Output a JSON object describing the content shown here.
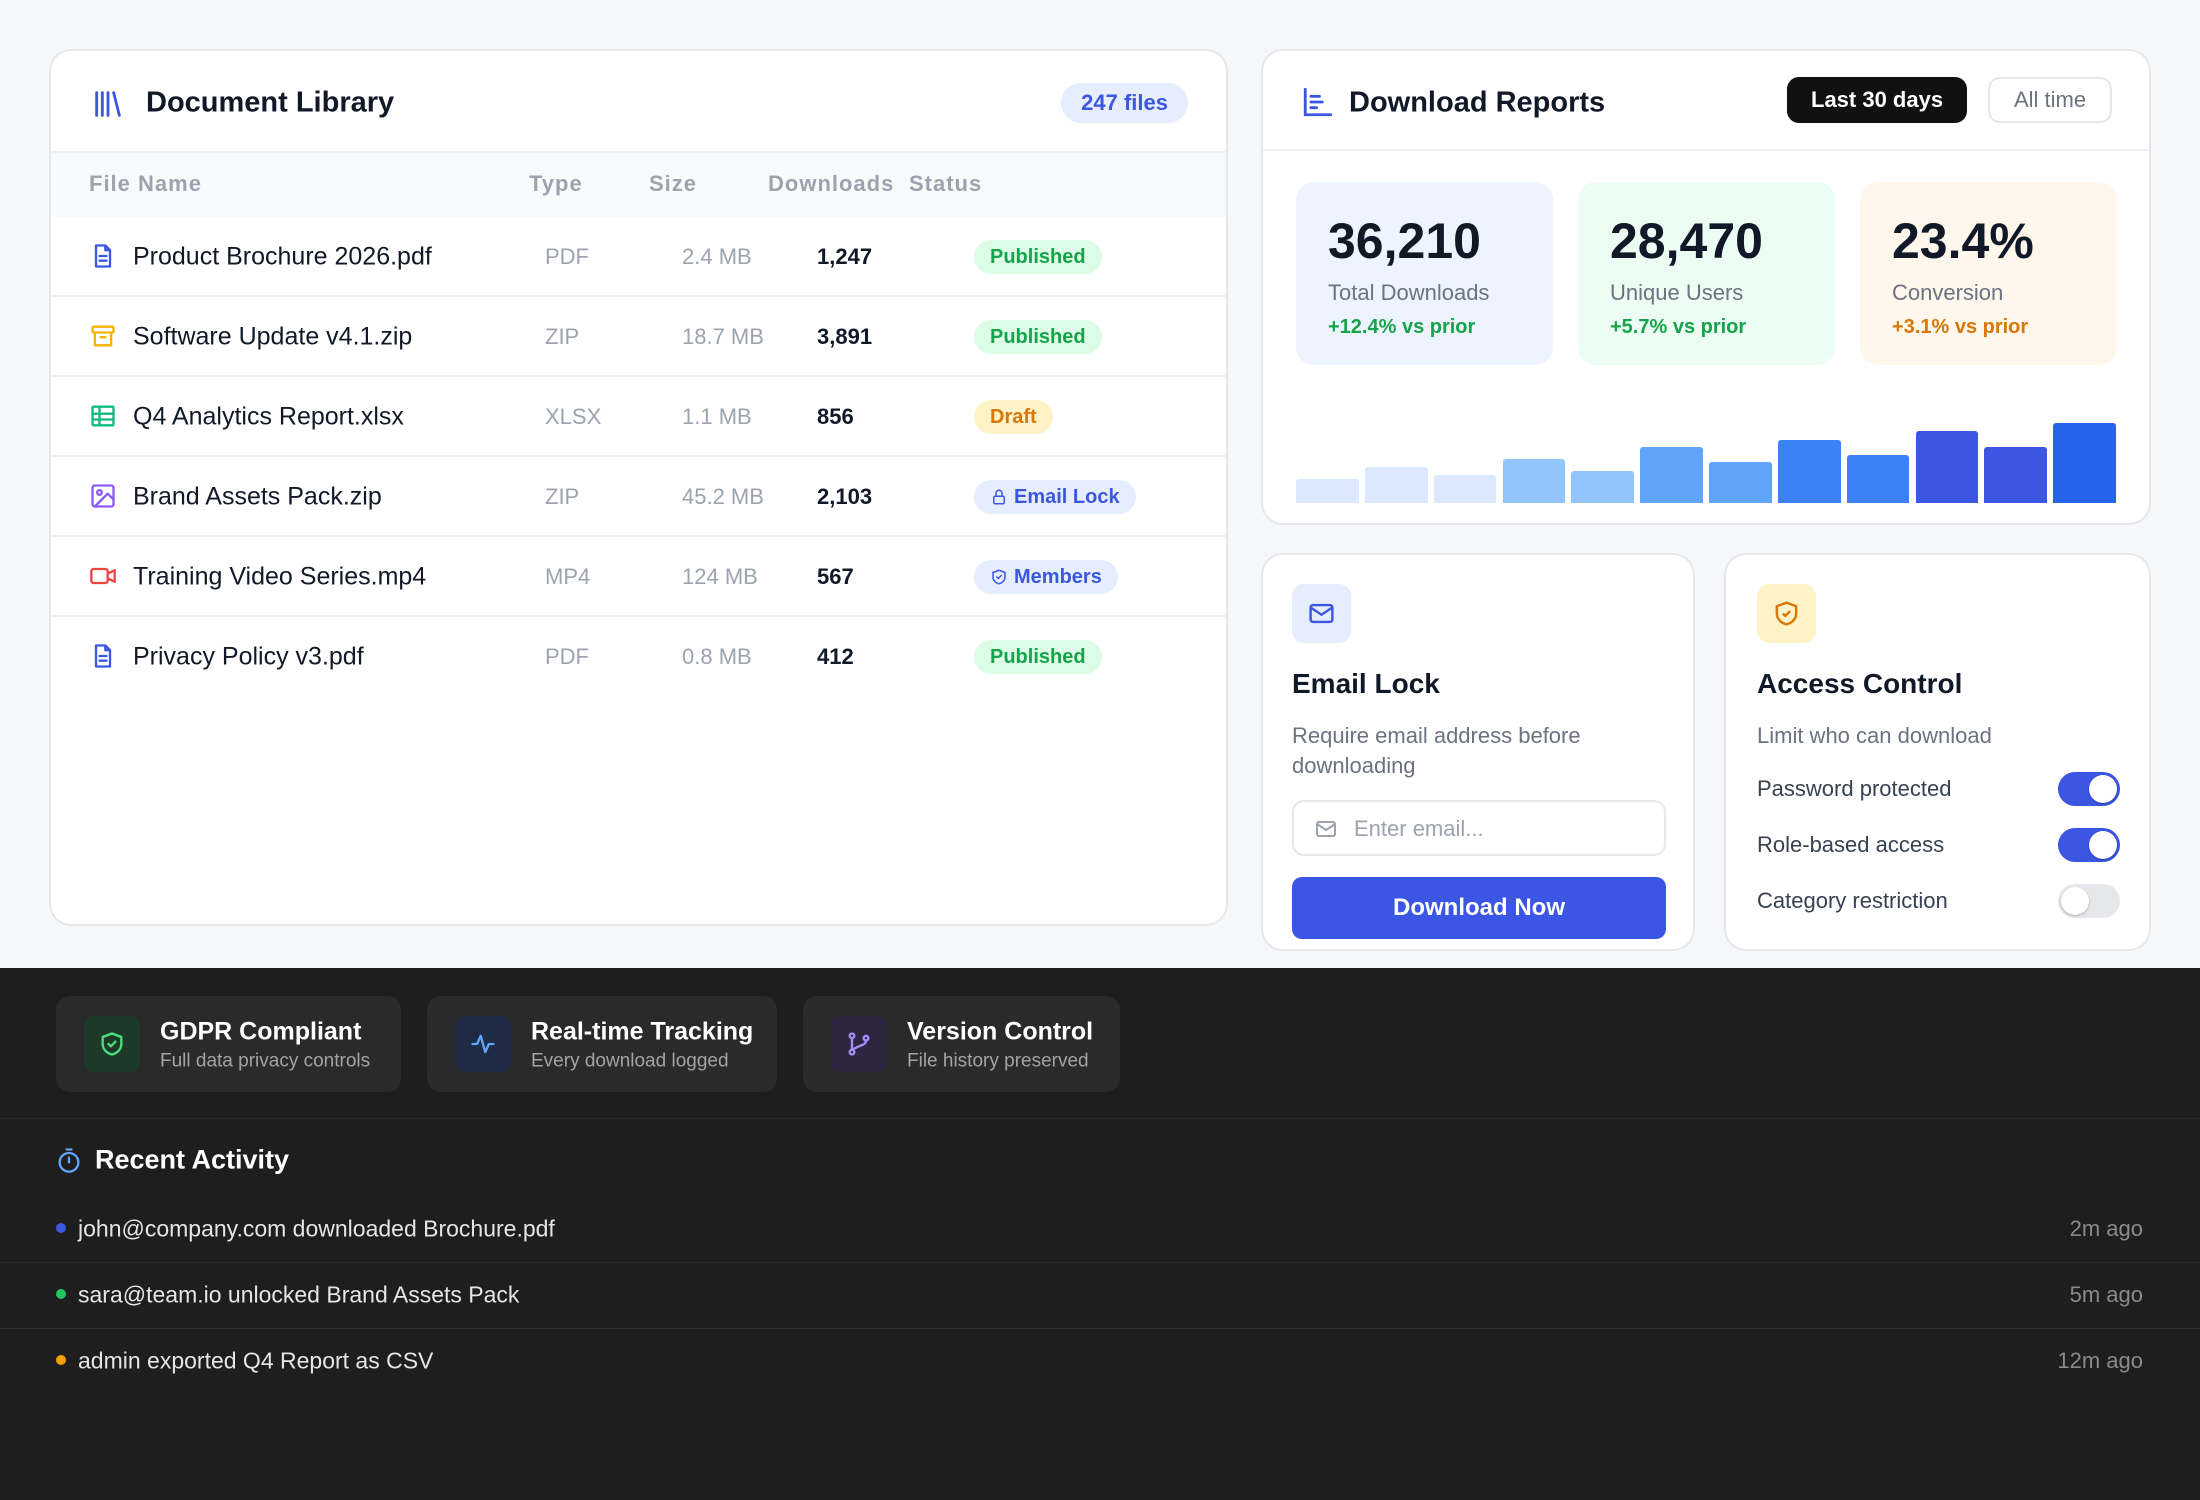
{
  "library": {
    "title": "Document Library",
    "count": "247 files",
    "columns": [
      "File Name",
      "Type",
      "Size",
      "Downloads",
      "Status"
    ],
    "rows": [
      [
        "Product Brochure 2026.pdf",
        "PDF",
        "2.4 MB",
        "1,247",
        "Published"
      ],
      [
        "Software Update v4.1.zip",
        "ZIP",
        "18.7 MB",
        "3,891",
        "Published"
      ],
      [
        "Q4 Analytics Report.xlsx",
        "XLSX",
        "1.1 MB",
        "856",
        "Draft"
      ],
      [
        "Brand Assets Pack.zip",
        "ZIP",
        "45.2 MB",
        "2,103",
        "Email Lock"
      ],
      [
        "Training Video Series.mp4",
        "MP4",
        "124 MB",
        "567",
        "Members"
      ],
      [
        "Privacy Policy v3.pdf",
        "PDF",
        "0.8 MB",
        "412",
        "Published"
      ]
    ]
  },
  "reports": {
    "title": "Download Reports",
    "tabs": [
      "Last 30 days",
      "All time"
    ],
    "stats": [
      {
        "value": "36,210",
        "label": "Total Downloads",
        "change": "+12.4% vs prior"
      },
      {
        "value": "28,470",
        "label": "Unique Users",
        "change": "+5.7% vs prior"
      },
      {
        "value": "23.4%",
        "label": "Conversion",
        "change": "+3.1% vs prior"
      }
    ],
    "chart": {
      "type": "bar",
      "values": [
        17,
        26,
        20,
        31,
        23,
        40,
        29,
        45,
        34,
        51,
        40,
        57
      ],
      "colors": [
        "#dbe8fd",
        "#dbe8fd",
        "#dbe8fd",
        "#93c5fd",
        "#93c5fd",
        "#60a5fa",
        "#60a5fa",
        "#3b82f6",
        "#3b82f6",
        "#3b56e0",
        "#3b56e0",
        "#2563eb"
      ]
    }
  },
  "email_lock": {
    "title": "Email Lock",
    "description": "Require email address before downloading",
    "placeholder": "Enter email...",
    "button": "Download Now"
  },
  "access_control": {
    "title": "Access Control",
    "description": "Limit who can download",
    "toggles": [
      {
        "label": "Password protected",
        "on": true
      },
      {
        "label": "Role-based access",
        "on": true
      },
      {
        "label": "Category restriction",
        "on": false
      }
    ]
  },
  "features": [
    {
      "title": "GDPR Compliant",
      "subtitle": "Full data privacy controls"
    },
    {
      "title": "Real-time Tracking",
      "subtitle": "Every download logged"
    },
    {
      "title": "Version Control",
      "subtitle": "File history preserved"
    }
  ],
  "activity": {
    "title": "Recent Activity",
    "items": [
      {
        "text": "john@company.com downloaded Brochure.pdf",
        "time": "2m ago"
      },
      {
        "text": "sara@team.io unlocked Brand Assets Pack",
        "time": "5m ago"
      },
      {
        "text": "admin exported Q4 Report as CSV",
        "time": "12m ago"
      }
    ]
  }
}
